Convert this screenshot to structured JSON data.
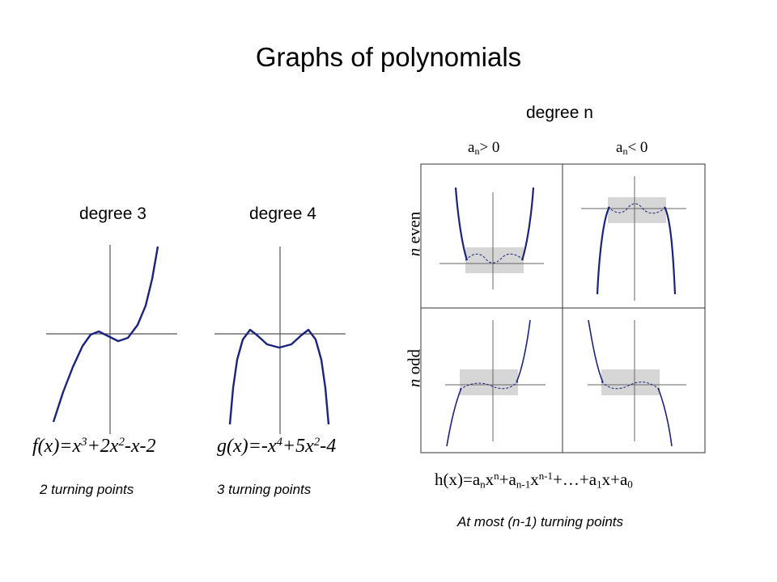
{
  "title": "Graphs of polynomials",
  "left": {
    "degree3": {
      "heading": "degree 3",
      "formula": {
        "a": "f(x)=x",
        "b": "3",
        "c": "+2x",
        "d": "2",
        "e": "-x-2"
      },
      "note": "2 turning points"
    },
    "degree4": {
      "heading": "degree 4",
      "formula": {
        "a": "g(x)=-x",
        "b": "4",
        "c": "+5x",
        "d": "2",
        "e": "-4"
      },
      "note": "3 turning points"
    }
  },
  "right": {
    "heading": "degree n",
    "col_pos": {
      "a": "a",
      "sub": "n",
      "rest": "> 0"
    },
    "col_neg": {
      "a": "a",
      "sub": "n",
      "rest": "< 0"
    },
    "row_even": {
      "n": "n",
      "rest": " even"
    },
    "row_odd": {
      "n": "n",
      "rest": " odd"
    },
    "formula": {
      "p1": "h(x)=a",
      "s1": "n",
      "p2": "x",
      "u1": "n",
      "p3": "+a",
      "s2": "n-1",
      "p4": "x",
      "u2": "n-1",
      "p5": "+…+a",
      "s3": "1",
      "p6": "x+a",
      "s4": "0"
    },
    "note": "At most (n-1) turning points"
  },
  "colors": {
    "curve": "#1a237e",
    "axis": "#555555",
    "box": "#d6d6d6",
    "grid": "#333333"
  }
}
